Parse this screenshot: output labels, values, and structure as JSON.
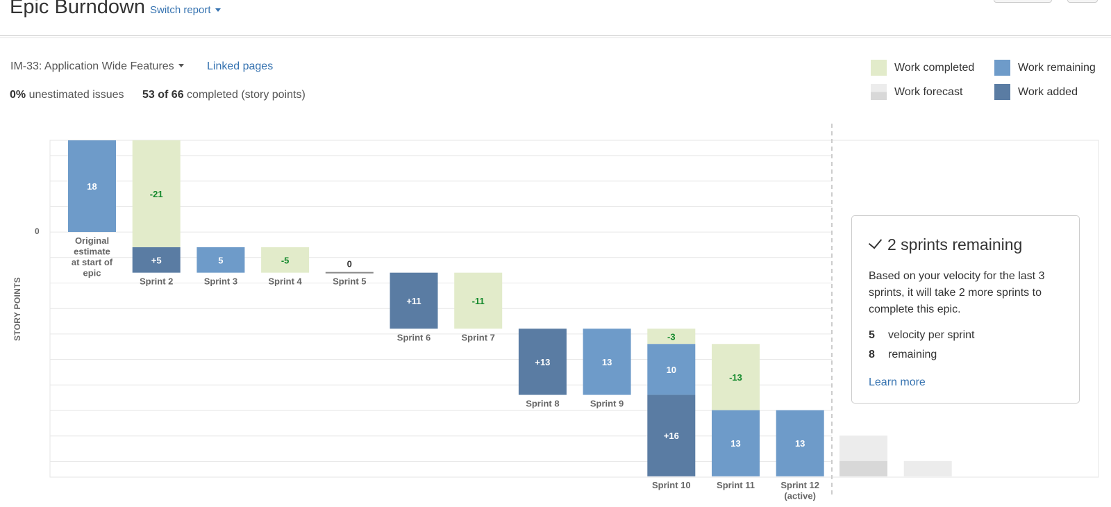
{
  "header": {
    "title": "Epic Burndown",
    "switch_report": "Switch report"
  },
  "epic": {
    "selected": "IM-33: Application Wide Features",
    "linked_pages": "Linked pages"
  },
  "stats": {
    "unestimated_value": "0%",
    "unestimated_label": "unestimated issues",
    "completed_value": "53 of 66",
    "completed_label": "completed (story points)"
  },
  "legend": {
    "completed": "Work completed",
    "remaining": "Work remaining",
    "forecast": "Work forecast",
    "added": "Work added"
  },
  "forecast": {
    "title": "2 sprints remaining",
    "description": "Based on your velocity for the last 3 sprints, it will take 2 more sprints to complete this epic.",
    "velocity_value": "5",
    "velocity_label": "velocity per sprint",
    "remaining_value": "8",
    "remaining_label": "remaining",
    "learn_more": "Learn more"
  },
  "colors": {
    "completed": "#e2ebca",
    "completed_text": "#14892c",
    "remaining": "#6e9bc9",
    "added": "#5a7ca3",
    "forecast_light": "#ececec",
    "forecast_dark": "#d8d8d8",
    "grid": "#e6e6e6"
  },
  "chart_data": {
    "type": "bar",
    "ylabel": "STORY POINTS",
    "y_ticks": [
      "0"
    ],
    "sprints": [
      {
        "label": [
          "Original",
          "estimate",
          "at start of",
          "epic"
        ],
        "segments": [
          {
            "kind": "remaining",
            "from": 18,
            "to": 0,
            "label": "18"
          }
        ]
      },
      {
        "label": [
          "Sprint 2"
        ],
        "segments": [
          {
            "kind": "completed",
            "from": 18,
            "to": -3,
            "label": "-21"
          },
          {
            "kind": "added",
            "from": -3,
            "to": -8,
            "label": "+5"
          }
        ]
      },
      {
        "label": [
          "Sprint 3"
        ],
        "segments": [
          {
            "kind": "remaining",
            "from": -3,
            "to": -8,
            "label": "5"
          }
        ]
      },
      {
        "label": [
          "Sprint 4"
        ],
        "segments": [
          {
            "kind": "completed",
            "from": -3,
            "to": -8,
            "label": "-5"
          }
        ]
      },
      {
        "label": [
          "Sprint 5"
        ],
        "segments": [
          {
            "kind": "zero",
            "from": -8,
            "to": -8,
            "label": "0"
          }
        ]
      },
      {
        "label": [
          "Sprint 6"
        ],
        "segments": [
          {
            "kind": "added",
            "from": -8,
            "to": -19,
            "label": "+11"
          }
        ]
      },
      {
        "label": [
          "Sprint 7"
        ],
        "segments": [
          {
            "kind": "completed",
            "from": -8,
            "to": -19,
            "label": "-11"
          }
        ]
      },
      {
        "label": [
          "Sprint 8"
        ],
        "segments": [
          {
            "kind": "added",
            "from": -19,
            "to": -32,
            "label": "+13"
          }
        ]
      },
      {
        "label": [
          "Sprint 9"
        ],
        "segments": [
          {
            "kind": "remaining",
            "from": -19,
            "to": -32,
            "label": "13"
          }
        ]
      },
      {
        "label": [
          "Sprint 10"
        ],
        "segments": [
          {
            "kind": "completed",
            "from": -19,
            "to": -22,
            "label": "-3"
          },
          {
            "kind": "remaining",
            "from": -22,
            "to": -32,
            "label": "10"
          },
          {
            "kind": "added",
            "from": -32,
            "to": -48,
            "label": "+16"
          }
        ]
      },
      {
        "label": [
          "Sprint 11"
        ],
        "segments": [
          {
            "kind": "completed",
            "from": -22,
            "to": -35,
            "label": "-13"
          },
          {
            "kind": "remaining",
            "from": -35,
            "to": -48,
            "label": "13"
          }
        ]
      },
      {
        "label": [
          "Sprint 12",
          "(active)"
        ],
        "segments": [
          {
            "kind": "remaining",
            "from": -35,
            "to": -48,
            "label": "13"
          }
        ]
      }
    ],
    "forecast_bars": [
      {
        "segments": [
          {
            "kind": "forecast_light",
            "from": -40,
            "to": -45
          },
          {
            "kind": "forecast_dark",
            "from": -45,
            "to": -48
          }
        ]
      },
      {
        "segments": [
          {
            "kind": "forecast_light",
            "from": -45,
            "to": -48
          }
        ]
      }
    ]
  }
}
